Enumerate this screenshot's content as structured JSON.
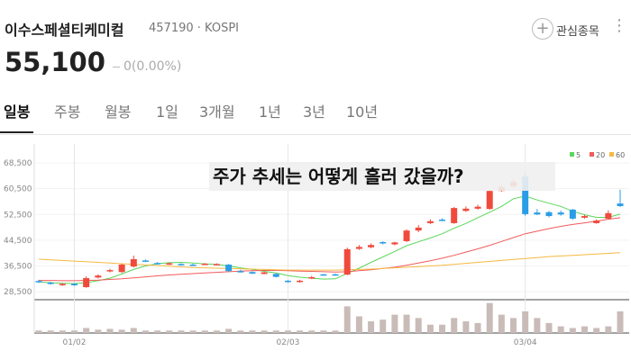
{
  "header": {
    "name": "이수스페셜티케미컬",
    "code_market": "457190 · KOSPI",
    "watch": "관심종목",
    "price": "55,100",
    "change": "0(0.00%)"
  },
  "tabs": [
    "일봉",
    "주봉",
    "월봉",
    "1일",
    "3개월",
    "1년",
    "3년",
    "10년"
  ],
  "overlay_title": "주가 추세는 어떻게 흘러 갔을까?",
  "chart_data": {
    "type": "candlestick",
    "categories": [
      null,
      null,
      null,
      "01/02",
      null,
      null,
      null,
      null,
      null,
      null,
      null,
      null,
      null,
      null,
      null,
      null,
      null,
      null,
      null,
      null,
      null,
      "02/03",
      null,
      null,
      null,
      null,
      null,
      null,
      null,
      null,
      null,
      null,
      null,
      null,
      null,
      null,
      null,
      null,
      null,
      null,
      null,
      "03/04",
      null,
      null,
      null,
      null,
      null,
      null,
      null,
      null
    ],
    "open": [
      31800,
      31300,
      30600,
      30900,
      29900,
      32900,
      34800,
      34600,
      36300,
      38200,
      37400,
      37000,
      37100,
      36900,
      36900,
      37000,
      36900,
      34900,
      34600,
      34000,
      34000,
      31900,
      31600,
      32600,
      33900,
      33900,
      33800,
      41800,
      42300,
      43900,
      43200,
      44200,
      47500,
      49800,
      50900,
      49800,
      53600,
      54300,
      54200,
      59800,
      61200,
      64300,
      53100,
      53200,
      53100,
      54000,
      51500,
      49800,
      51200,
      55900
    ],
    "high": [
      32200,
      31600,
      31200,
      31200,
      33300,
      33900,
      35600,
      37200,
      39700,
      38500,
      37700,
      37600,
      37300,
      37200,
      37400,
      37300,
      37100,
      35300,
      34800,
      34700,
      34200,
      32100,
      32200,
      33400,
      34000,
      34100,
      42200,
      43000,
      43500,
      44200,
      44000,
      47900,
      49200,
      51000,
      51300,
      54800,
      55000,
      55500,
      60200,
      61900,
      63500,
      66000,
      54200,
      53600,
      53700,
      54200,
      52400,
      51000,
      53800,
      60200
    ],
    "low": [
      31200,
      30700,
      30300,
      30300,
      29700,
      32600,
      34500,
      34300,
      36000,
      37700,
      36900,
      36800,
      36600,
      36500,
      36800,
      36800,
      34600,
      34500,
      34000,
      33900,
      32900,
      31300,
      31300,
      32400,
      33500,
      33500,
      33600,
      41500,
      42000,
      43200,
      42900,
      43900,
      47000,
      49500,
      50400,
      49600,
      53300,
      54000,
      54000,
      59600,
      60900,
      52100,
      52300,
      51600,
      52100,
      50800,
      51200,
      49600,
      50900,
      54800
    ],
    "close": [
      31500,
      31000,
      30900,
      30500,
      32700,
      33500,
      35200,
      36900,
      38600,
      38000,
      37100,
      37300,
      36800,
      36700,
      37200,
      37100,
      34900,
      34700,
      34100,
      34500,
      33100,
      31500,
      31900,
      33000,
      33700,
      33700,
      41700,
      42400,
      43000,
      43500,
      43800,
      47500,
      48400,
      50400,
      50700,
      54500,
      54300,
      54900,
      59800,
      61000,
      62600,
      52600,
      52500,
      52000,
      52500,
      51200,
      52000,
      50600,
      52900,
      55100
    ],
    "up_color": "#f04a3c",
    "down_color": "#2a9de6",
    "ylim": [
      26000,
      74400
    ],
    "yticks": [
      {
        "value": 28500,
        "label": "28,500"
      },
      {
        "value": 36500,
        "label": "36,500"
      },
      {
        "value": 44500,
        "label": "44,500"
      },
      {
        "value": 52500,
        "label": "52,500"
      },
      {
        "value": 60500,
        "label": "60,500"
      },
      {
        "value": 68500,
        "label": "68,500"
      }
    ],
    "series": [
      {
        "name": "5",
        "color": "#5ad65a",
        "values": [
          31600,
          31300,
          31100,
          31000,
          31300,
          31900,
          32700,
          34000,
          35400,
          36500,
          37200,
          37500,
          37600,
          37400,
          37100,
          37000,
          36500,
          35900,
          35400,
          34800,
          34300,
          33500,
          33000,
          32700,
          32400,
          32500,
          34200,
          35800,
          37600,
          39300,
          41000,
          42800,
          44000,
          45200,
          46500,
          48200,
          49700,
          51500,
          53200,
          55000,
          57400,
          58200,
          57000,
          56000,
          55000,
          53500,
          52400,
          51600,
          51600,
          52600
        ]
      },
      {
        "name": "20",
        "color": "#f25a5a",
        "values": [
          32000,
          32000,
          31900,
          31900,
          32000,
          32100,
          32300,
          32500,
          32800,
          33100,
          33400,
          33700,
          33900,
          34100,
          34300,
          34500,
          34700,
          34900,
          35000,
          35100,
          35100,
          35000,
          34900,
          34800,
          34700,
          34600,
          34700,
          35000,
          35300,
          35700,
          36100,
          36700,
          37400,
          38100,
          38900,
          39800,
          40800,
          41800,
          42900,
          44100,
          45300,
          46500,
          47300,
          48100,
          48800,
          49400,
          49900,
          50400,
          51000,
          51500
        ]
      },
      {
        "name": "60",
        "color": "#f5b942",
        "values": [
          38600,
          38400,
          38200,
          38000,
          37800,
          37600,
          37400,
          37200,
          37000,
          36800,
          36600,
          36400,
          36200,
          36000,
          35900,
          35800,
          35700,
          35600,
          35500,
          35400,
          35300,
          35200,
          35200,
          35200,
          35200,
          35200,
          35300,
          35400,
          35500,
          35700,
          35900,
          36100,
          36300,
          36500,
          36700,
          37000,
          37300,
          37600,
          37900,
          38200,
          38500,
          38800,
          39100,
          39400,
          39600,
          39800,
          40000,
          40200,
          40400,
          40600
        ]
      }
    ],
    "volume": {
      "color": "#c9bcb8",
      "ylim": [
        0,
        40
      ],
      "values": [
        3,
        3,
        3,
        3,
        6,
        4,
        5,
        4,
        6,
        3,
        3,
        3,
        3,
        3,
        3,
        3,
        5,
        3,
        3,
        3,
        3,
        3,
        3,
        3,
        3,
        3,
        32,
        20,
        14,
        16,
        22,
        22,
        18,
        10,
        10,
        18,
        14,
        12,
        36,
        22,
        18,
        26,
        18,
        12,
        8,
        6,
        8,
        6,
        8,
        26
      ]
    }
  }
}
